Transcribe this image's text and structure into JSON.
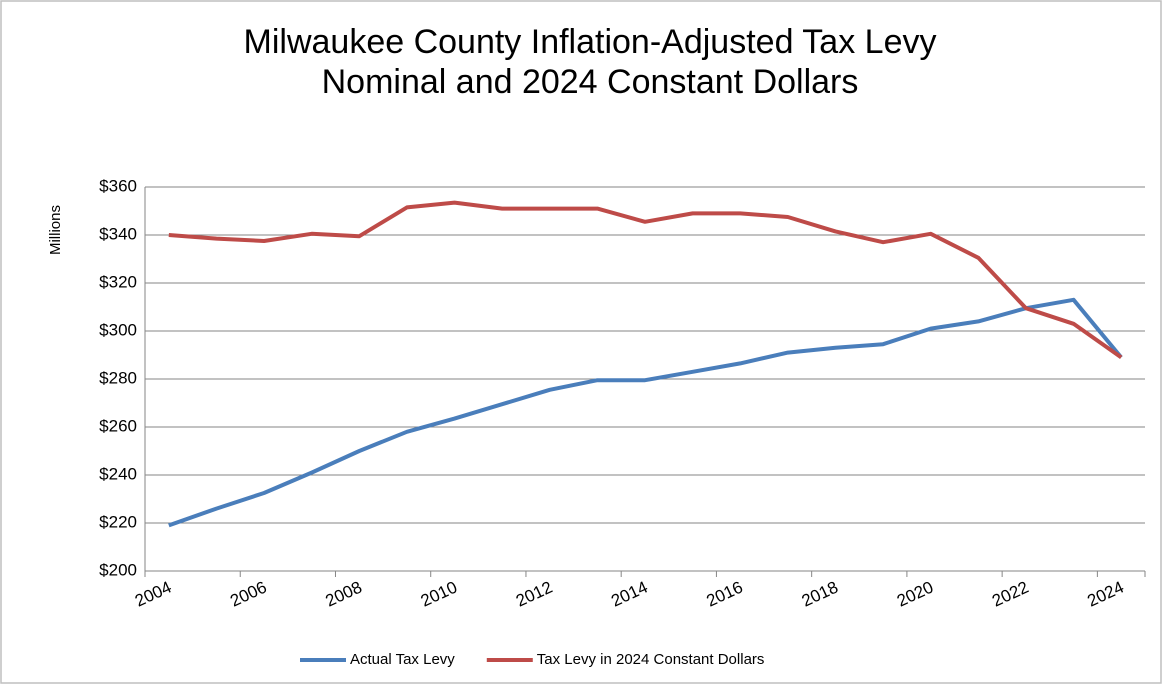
{
  "chart_data": {
    "type": "line",
    "title": "Milwaukee County Inflation-Adjusted Tax Levy",
    "subtitle": "Nominal and 2024 Constant Dollars",
    "y_label": "Millions",
    "categories": [
      "2004",
      null,
      "2006",
      null,
      "2008",
      null,
      "2010",
      null,
      "2012",
      null,
      "2014",
      null,
      "2016",
      null,
      "2018",
      null,
      "2020",
      null,
      "2022",
      null,
      "2024"
    ],
    "series": [
      {
        "name": "Actual Tax Levy",
        "color": "#4a7ebb",
        "values": [
          219,
          226,
          232.5,
          241,
          250,
          258,
          263.5,
          269.5,
          275.5,
          279.5,
          279.5,
          283,
          286.5,
          291,
          293,
          294.5,
          301,
          304,
          309.5,
          313,
          289
        ]
      },
      {
        "name": "Tax Levy in 2024 Constant Dollars",
        "color": "#be4b48",
        "values": [
          340,
          338.5,
          337.5,
          340.5,
          339.5,
          351.5,
          353.5,
          351,
          351,
          351,
          345.5,
          349,
          349,
          347.5,
          341.5,
          337,
          340.5,
          330.5,
          309.5,
          303,
          289
        ]
      }
    ],
    "ylim": [
      200,
      360
    ],
    "yticks": [
      {
        "value": 200,
        "label": "$200"
      },
      {
        "value": 220,
        "label": "$220"
      },
      {
        "value": 240,
        "label": "$240"
      },
      {
        "value": 260,
        "label": "$260"
      },
      {
        "value": 280,
        "label": "$280"
      },
      {
        "value": 300,
        "label": "$300"
      },
      {
        "value": 320,
        "label": "$320"
      },
      {
        "value": 340,
        "label": "$340"
      },
      {
        "value": 360,
        "label": "$360"
      }
    ],
    "grid": true,
    "legend": "bottom"
  }
}
